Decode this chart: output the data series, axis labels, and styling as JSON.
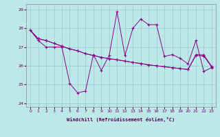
{
  "xlabel": "Windchill (Refroidissement éolien,°C)",
  "xlim": [
    -0.5,
    23.5
  ],
  "ylim": [
    23.8,
    29.3
  ],
  "yticks": [
    24,
    25,
    26,
    27,
    28,
    29
  ],
  "xticks": [
    0,
    1,
    2,
    3,
    4,
    5,
    6,
    7,
    8,
    9,
    10,
    11,
    12,
    13,
    14,
    15,
    16,
    17,
    18,
    19,
    20,
    21,
    22,
    23
  ],
  "bg_color": "#bde8e8",
  "line_color": "#880088",
  "grid_color": "#99cccc",
  "series_jagged": [
    27.9,
    27.35,
    27.0,
    27.0,
    27.0,
    25.05,
    24.55,
    24.65,
    26.6,
    25.75,
    26.55,
    28.9,
    26.55,
    28.0,
    28.5,
    28.2,
    28.2,
    26.5,
    26.6,
    26.4,
    26.1,
    27.35,
    25.7,
    25.9
  ],
  "series_trend1": [
    27.9,
    27.45,
    27.35,
    27.2,
    27.05,
    26.9,
    26.8,
    26.65,
    26.55,
    26.45,
    26.38,
    26.32,
    26.25,
    26.18,
    26.12,
    26.05,
    26.0,
    25.95,
    25.9,
    25.85,
    25.8,
    26.6,
    26.58,
    25.97
  ],
  "series_trend2": [
    27.9,
    27.45,
    27.35,
    27.2,
    27.05,
    26.9,
    26.8,
    26.65,
    26.55,
    26.45,
    26.38,
    26.32,
    26.25,
    26.18,
    26.12,
    26.05,
    26.0,
    25.95,
    25.9,
    25.85,
    25.8,
    26.55,
    26.52,
    25.93
  ],
  "figsize": [
    3.2,
    2.0
  ],
  "dpi": 100
}
